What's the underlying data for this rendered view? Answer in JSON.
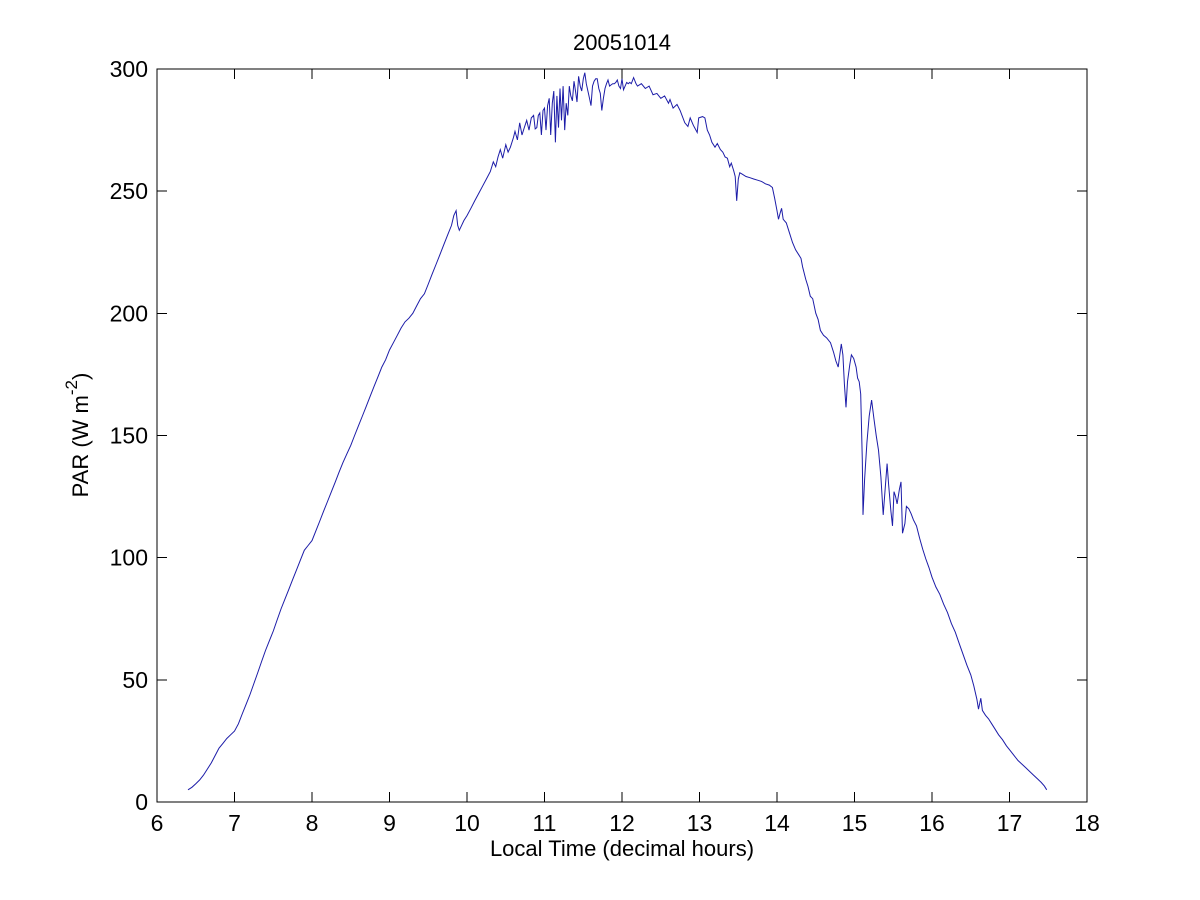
{
  "figure": {
    "background": "#ffffff"
  },
  "chart_data": {
    "type": "line",
    "title": "20051014",
    "xlabel": "Local Time (decimal hours)",
    "ylabel": "PAR (W m-2)",
    "ylabel_parts": {
      "main": "PAR (W m",
      "sup": "-2",
      "end": ")"
    },
    "xlim": [
      6,
      18
    ],
    "ylim": [
      0,
      300
    ],
    "x_ticks": [
      6,
      7,
      8,
      9,
      10,
      11,
      12,
      13,
      14,
      15,
      16,
      17,
      18
    ],
    "y_ticks": [
      0,
      50,
      100,
      150,
      200,
      250,
      300
    ],
    "grid": false,
    "legend": "none",
    "line_color": "#1c1ca8",
    "axis_color": "#000000",
    "series": [
      {
        "name": "PAR",
        "points": [
          [
            6.4,
            5
          ],
          [
            6.45,
            6
          ],
          [
            6.5,
            7.5
          ],
          [
            6.55,
            9
          ],
          [
            6.6,
            11
          ],
          [
            6.65,
            13.5
          ],
          [
            6.7,
            16
          ],
          [
            6.75,
            19
          ],
          [
            6.8,
            22
          ],
          [
            6.85,
            24
          ],
          [
            6.9,
            26
          ],
          [
            6.95,
            27.5
          ],
          [
            7.0,
            29
          ],
          [
            7.05,
            32
          ],
          [
            7.1,
            36
          ],
          [
            7.15,
            40
          ],
          [
            7.2,
            44
          ],
          [
            7.25,
            48.5
          ],
          [
            7.3,
            53
          ],
          [
            7.35,
            57.5
          ],
          [
            7.4,
            62
          ],
          [
            7.45,
            66
          ],
          [
            7.5,
            70
          ],
          [
            7.55,
            74.5
          ],
          [
            7.6,
            79
          ],
          [
            7.65,
            83
          ],
          [
            7.7,
            87
          ],
          [
            7.75,
            91
          ],
          [
            7.8,
            95
          ],
          [
            7.85,
            99
          ],
          [
            7.9,
            103
          ],
          [
            7.95,
            105
          ],
          [
            8.0,
            107
          ],
          [
            8.05,
            111
          ],
          [
            8.1,
            115
          ],
          [
            8.15,
            119
          ],
          [
            8.2,
            123
          ],
          [
            8.25,
            127
          ],
          [
            8.3,
            131
          ],
          [
            8.35,
            135
          ],
          [
            8.4,
            139
          ],
          [
            8.45,
            142.5
          ],
          [
            8.5,
            146
          ],
          [
            8.55,
            150
          ],
          [
            8.6,
            154
          ],
          [
            8.65,
            158
          ],
          [
            8.7,
            162
          ],
          [
            8.75,
            166
          ],
          [
            8.8,
            170
          ],
          [
            8.85,
            174
          ],
          [
            8.9,
            178
          ],
          [
            8.95,
            181
          ],
          [
            9.0,
            185
          ],
          [
            9.05,
            188
          ],
          [
            9.1,
            191
          ],
          [
            9.15,
            194
          ],
          [
            9.2,
            196.5
          ],
          [
            9.25,
            198
          ],
          [
            9.3,
            200
          ],
          [
            9.35,
            203
          ],
          [
            9.4,
            206
          ],
          [
            9.45,
            208
          ],
          [
            9.5,
            212
          ],
          [
            9.55,
            216
          ],
          [
            9.6,
            220
          ],
          [
            9.65,
            224
          ],
          [
            9.7,
            228
          ],
          [
            9.75,
            232
          ],
          [
            9.8,
            236
          ],
          [
            9.83,
            240
          ],
          [
            9.86,
            242
          ],
          [
            9.88,
            236
          ],
          [
            9.9,
            234
          ],
          [
            9.93,
            236
          ],
          [
            9.96,
            238
          ],
          [
            10.0,
            240
          ],
          [
            10.05,
            243
          ],
          [
            10.1,
            246
          ],
          [
            10.15,
            249
          ],
          [
            10.2,
            252
          ],
          [
            10.25,
            255
          ],
          [
            10.3,
            258
          ],
          [
            10.34,
            262
          ],
          [
            10.37,
            260
          ],
          [
            10.4,
            264
          ],
          [
            10.43,
            267
          ],
          [
            10.46,
            263.5
          ],
          [
            10.5,
            269
          ],
          [
            10.53,
            266
          ],
          [
            10.56,
            268
          ],
          [
            10.6,
            272
          ],
          [
            10.62,
            274.5
          ],
          [
            10.65,
            271
          ],
          [
            10.68,
            278
          ],
          [
            10.71,
            273
          ],
          [
            10.74,
            276
          ],
          [
            10.77,
            279
          ],
          [
            10.8,
            275
          ],
          [
            10.83,
            280
          ],
          [
            10.86,
            281
          ],
          [
            10.88,
            275.5
          ],
          [
            10.9,
            276
          ],
          [
            10.92,
            281
          ],
          [
            10.94,
            282
          ],
          [
            10.96,
            273
          ],
          [
            10.98,
            283
          ],
          [
            11.0,
            284
          ],
          [
            11.02,
            275
          ],
          [
            11.04,
            285
          ],
          [
            11.06,
            288
          ],
          [
            11.08,
            273
          ],
          [
            11.1,
            286
          ],
          [
            11.12,
            291
          ],
          [
            11.14,
            270
          ],
          [
            11.16,
            289
          ],
          [
            11.18,
            276
          ],
          [
            11.2,
            292
          ],
          [
            11.22,
            279
          ],
          [
            11.24,
            293
          ],
          [
            11.26,
            275
          ],
          [
            11.28,
            286
          ],
          [
            11.3,
            281
          ],
          [
            11.32,
            293
          ],
          [
            11.34,
            289
          ],
          [
            11.36,
            287
          ],
          [
            11.38,
            295
          ],
          [
            11.4,
            291
          ],
          [
            11.42,
            286.5
          ],
          [
            11.44,
            297
          ],
          [
            11.46,
            293
          ],
          [
            11.48,
            291
          ],
          [
            11.5,
            296
          ],
          [
            11.52,
            298.5
          ],
          [
            11.54,
            294
          ],
          [
            11.56,
            291
          ],
          [
            11.58,
            288
          ],
          [
            11.6,
            285
          ],
          [
            11.62,
            293
          ],
          [
            11.64,
            295
          ],
          [
            11.66,
            296
          ],
          [
            11.68,
            296
          ],
          [
            11.7,
            292
          ],
          [
            11.72,
            290
          ],
          [
            11.74,
            283
          ],
          [
            11.76,
            288
          ],
          [
            11.78,
            292
          ],
          [
            11.8,
            294
          ],
          [
            11.82,
            295.5
          ],
          [
            11.84,
            293
          ],
          [
            11.86,
            293.5
          ],
          [
            11.88,
            294
          ],
          [
            11.9,
            294
          ],
          [
            11.92,
            294.5
          ],
          [
            11.94,
            295.5
          ],
          [
            11.96,
            293
          ],
          [
            11.98,
            292
          ],
          [
            12.0,
            296
          ],
          [
            12.02,
            291.5
          ],
          [
            12.04,
            293
          ],
          [
            12.06,
            294.5
          ],
          [
            12.08,
            294
          ],
          [
            12.1,
            294.5
          ],
          [
            12.12,
            294
          ],
          [
            12.15,
            296.5
          ],
          [
            12.18,
            294
          ],
          [
            12.2,
            293
          ],
          [
            12.25,
            294
          ],
          [
            12.3,
            292
          ],
          [
            12.35,
            293
          ],
          [
            12.4,
            289.5
          ],
          [
            12.45,
            290
          ],
          [
            12.5,
            288
          ],
          [
            12.55,
            289
          ],
          [
            12.6,
            286
          ],
          [
            12.62,
            287.5
          ],
          [
            12.66,
            284
          ],
          [
            12.71,
            285.5
          ],
          [
            12.75,
            283
          ],
          [
            12.81,
            278
          ],
          [
            12.85,
            276.5
          ],
          [
            12.88,
            280
          ],
          [
            12.92,
            277
          ],
          [
            12.97,
            274
          ],
          [
            12.99,
            280
          ],
          [
            13.04,
            280.5
          ],
          [
            13.07,
            280
          ],
          [
            13.1,
            275
          ],
          [
            13.13,
            273
          ],
          [
            13.16,
            270
          ],
          [
            13.2,
            268
          ],
          [
            13.23,
            269.5
          ],
          [
            13.27,
            267
          ],
          [
            13.3,
            266
          ],
          [
            13.33,
            264
          ],
          [
            13.36,
            263.5
          ],
          [
            13.39,
            260
          ],
          [
            13.41,
            261.5
          ],
          [
            13.44,
            258.5
          ],
          [
            13.46,
            256
          ],
          [
            13.48,
            246
          ],
          [
            13.5,
            255
          ],
          [
            13.52,
            257.5
          ],
          [
            13.55,
            257
          ],
          [
            13.6,
            256
          ],
          [
            13.65,
            255.5
          ],
          [
            13.7,
            255
          ],
          [
            13.75,
            254.5
          ],
          [
            13.8,
            254
          ],
          [
            13.85,
            253
          ],
          [
            13.9,
            252.5
          ],
          [
            13.94,
            251.5
          ],
          [
            13.97,
            247
          ],
          [
            14.0,
            242
          ],
          [
            14.02,
            238.5
          ],
          [
            14.04,
            241
          ],
          [
            14.06,
            243
          ],
          [
            14.08,
            238.5
          ],
          [
            14.12,
            237
          ],
          [
            14.16,
            233
          ],
          [
            14.2,
            229
          ],
          [
            14.24,
            226
          ],
          [
            14.28,
            224
          ],
          [
            14.31,
            222.5
          ],
          [
            14.33,
            219
          ],
          [
            14.37,
            214
          ],
          [
            14.4,
            211
          ],
          [
            14.43,
            207
          ],
          [
            14.46,
            206
          ],
          [
            14.5,
            200
          ],
          [
            14.53,
            197.5
          ],
          [
            14.56,
            193
          ],
          [
            14.6,
            191
          ],
          [
            14.64,
            190
          ],
          [
            14.69,
            188
          ],
          [
            14.73,
            184
          ],
          [
            14.76,
            180.5
          ],
          [
            14.79,
            178
          ],
          [
            14.81,
            183
          ],
          [
            14.83,
            187.5
          ],
          [
            14.85,
            183
          ],
          [
            14.87,
            171
          ],
          [
            14.89,
            161.5
          ],
          [
            14.91,
            172
          ],
          [
            14.94,
            179
          ],
          [
            14.96,
            183
          ],
          [
            14.99,
            181.5
          ],
          [
            15.02,
            178
          ],
          [
            15.04,
            173.5
          ],
          [
            15.06,
            172
          ],
          [
            15.08,
            167
          ],
          [
            15.1,
            140
          ],
          [
            15.11,
            117.5
          ],
          [
            15.13,
            132
          ],
          [
            15.16,
            147
          ],
          [
            15.19,
            158
          ],
          [
            15.22,
            164.5
          ],
          [
            15.25,
            157
          ],
          [
            15.28,
            150
          ],
          [
            15.31,
            144
          ],
          [
            15.34,
            133
          ],
          [
            15.37,
            117.5
          ],
          [
            15.4,
            130
          ],
          [
            15.42,
            138.5
          ],
          [
            15.44,
            130
          ],
          [
            15.47,
            119
          ],
          [
            15.49,
            113
          ],
          [
            15.51,
            127
          ],
          [
            15.53,
            125
          ],
          [
            15.55,
            122
          ],
          [
            15.58,
            128
          ],
          [
            15.6,
            131
          ],
          [
            15.62,
            110
          ],
          [
            15.65,
            114
          ],
          [
            15.67,
            121
          ],
          [
            15.7,
            120
          ],
          [
            15.73,
            118
          ],
          [
            15.76,
            115.5
          ],
          [
            15.8,
            113
          ],
          [
            15.84,
            108
          ],
          [
            15.88,
            103.5
          ],
          [
            15.92,
            99.5
          ],
          [
            15.96,
            96
          ],
          [
            16.0,
            92
          ],
          [
            16.05,
            88
          ],
          [
            16.1,
            85
          ],
          [
            16.15,
            81
          ],
          [
            16.2,
            77.5
          ],
          [
            16.25,
            73
          ],
          [
            16.3,
            69.5
          ],
          [
            16.35,
            65
          ],
          [
            16.4,
            60.5
          ],
          [
            16.45,
            56
          ],
          [
            16.5,
            52
          ],
          [
            16.54,
            47.5
          ],
          [
            16.58,
            42
          ],
          [
            16.6,
            38
          ],
          [
            16.63,
            42.5
          ],
          [
            16.65,
            37.5
          ],
          [
            16.69,
            35.5
          ],
          [
            16.73,
            34
          ],
          [
            16.77,
            32
          ],
          [
            16.81,
            30
          ],
          [
            16.86,
            27.5
          ],
          [
            16.91,
            25.5
          ],
          [
            16.96,
            23
          ],
          [
            17.01,
            21
          ],
          [
            17.06,
            19
          ],
          [
            17.11,
            17
          ],
          [
            17.16,
            15.5
          ],
          [
            17.21,
            14
          ],
          [
            17.26,
            12.5
          ],
          [
            17.31,
            11
          ],
          [
            17.36,
            9.5
          ],
          [
            17.41,
            8
          ],
          [
            17.45,
            6.5
          ],
          [
            17.48,
            5
          ]
        ]
      }
    ]
  }
}
